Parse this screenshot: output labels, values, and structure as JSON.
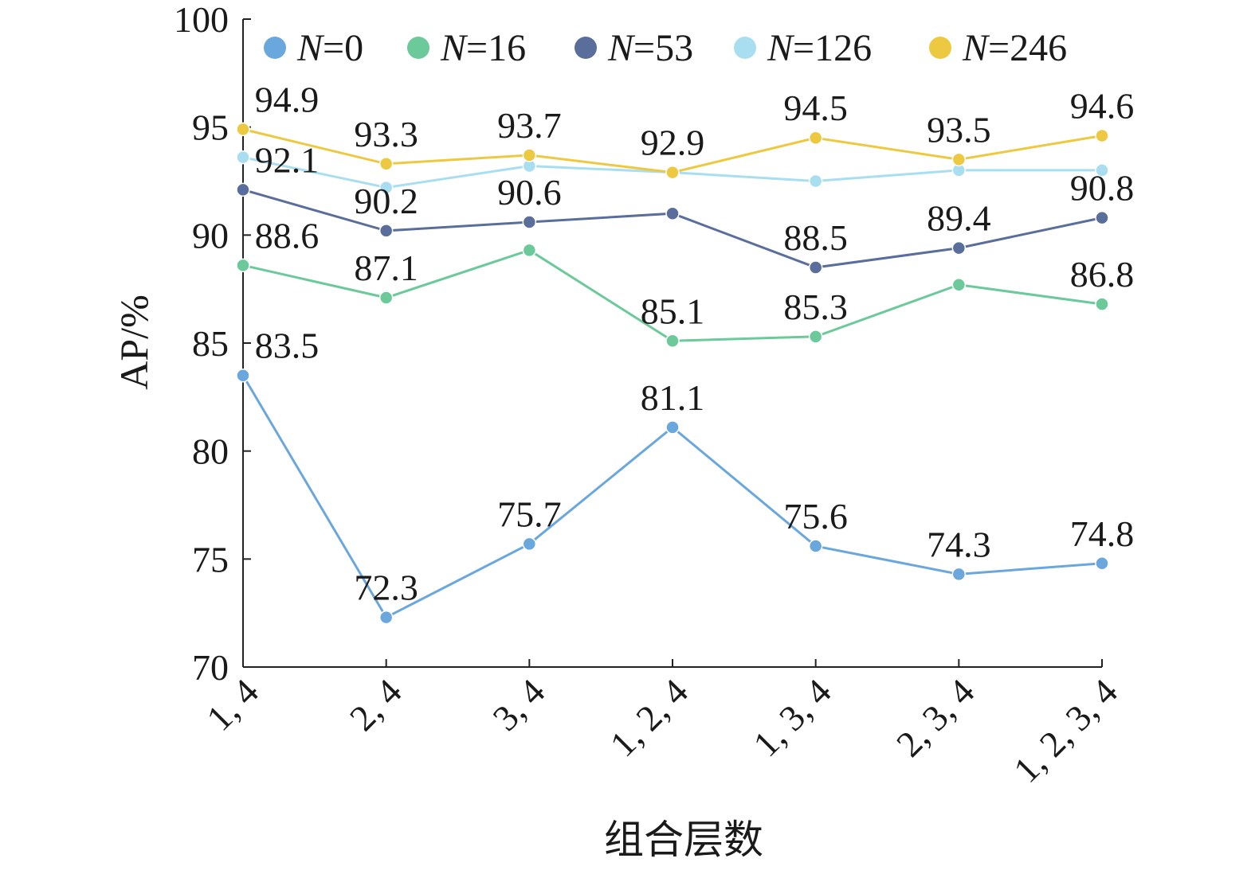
{
  "chart_data": {
    "type": "line",
    "xlabel": "组合层数",
    "ylabel": "AP/%",
    "ylim": [
      70,
      100
    ],
    "yticks": [
      70,
      75,
      80,
      85,
      90,
      95,
      100
    ],
    "categories": [
      "1, 4",
      "2, 4",
      "3, 4",
      "1, 2, 4",
      "1, 3, 4",
      "2, 3, 4",
      "1, 2, 3, 4"
    ],
    "legend_position": "top",
    "grid": false,
    "series": [
      {
        "name": "N=0",
        "legend_var": "N",
        "legend_rest": "=0",
        "color": "#6aa7dc",
        "values": [
          83.5,
          72.3,
          75.7,
          81.1,
          75.6,
          74.3,
          74.8
        ],
        "labels": [
          "83.5",
          "72.3",
          "75.7",
          "81.1",
          "75.6",
          "74.3",
          "74.8"
        ]
      },
      {
        "name": "N=16",
        "legend_var": "N",
        "legend_rest": "=16",
        "color": "#6cc99a",
        "values": [
          88.6,
          87.1,
          89.3,
          85.1,
          85.3,
          87.7,
          86.8
        ],
        "labels": [
          "88.6",
          "87.1",
          null,
          "85.1",
          "85.3",
          null,
          "86.8"
        ]
      },
      {
        "name": "N=53",
        "legend_var": "N",
        "legend_rest": "=53",
        "color": "#5a6e9b",
        "values": [
          92.1,
          90.2,
          90.6,
          91.0,
          88.5,
          89.4,
          90.8
        ],
        "labels": [
          "92.1",
          "90.2",
          "90.6",
          null,
          "88.5",
          "89.4",
          "90.8"
        ]
      },
      {
        "name": "N=126",
        "legend_var": "N",
        "legend_rest": "=126",
        "color": "#a8def0",
        "values": [
          93.6,
          92.2,
          93.2,
          92.9,
          92.5,
          93.0,
          93.0
        ],
        "labels": [
          null,
          null,
          null,
          null,
          null,
          null,
          null
        ]
      },
      {
        "name": "N=246",
        "legend_var": "N",
        "legend_rest": "=246",
        "color": "#ecc940",
        "values": [
          94.9,
          93.3,
          93.7,
          92.9,
          94.5,
          93.5,
          94.6
        ],
        "labels": [
          "94.9",
          "93.3",
          "93.7",
          "92.9",
          "94.5",
          "93.5",
          "94.6"
        ]
      }
    ]
  }
}
